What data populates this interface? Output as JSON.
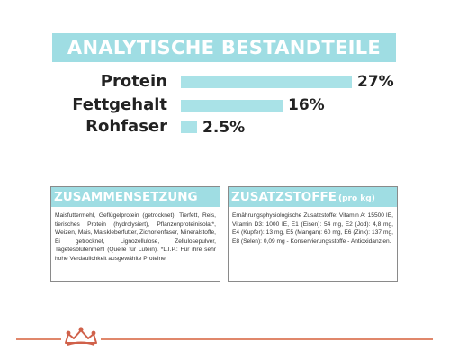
{
  "banner": {
    "title": "ANALYTISCHE BESTANDTEILE"
  },
  "nutrients": [
    {
      "label": "Protein",
      "value": "27%",
      "percent": 27
    },
    {
      "label": "Fettgehalt",
      "value": "16%",
      "percent": 16
    },
    {
      "label": "Rohfaser",
      "value": "2.5%",
      "percent": 2.5
    }
  ],
  "composition": {
    "title": "ZUSAMMENSETZUNG",
    "text": "Maisfuttermehl, Geflügelprotein (getrocknet), Tierfett, Reis, tierisches Protein (hydrolysiert), Pflanzenproteinisolat*, Weizen, Mais, Maiskleberfutter, Zichorienfaser, Mineralstoffe, Ei getrocknet, Lignozellulose, Zellulosepulver, Tagetesblütenmehl (Quelle für Lutein). *L.I.P.: Für ihre sehr hohe Verdaulichkeit ausgewählte Proteine."
  },
  "additives": {
    "title": "ZUSATZSTOFFE",
    "subtitle": "(pro kg)",
    "text": "Ernährungsphysiologische Zusatzstoffe: Vitamin A: 15500 IE, Vitamin D3: 1000 IE, E1 (Eisen): 54 mg, E2 (Jod): 4,8 mg, E4 (Kupfer): 13 mg, E5 (Mangan): 60 mg, E6 (Zink): 137 mg, E8 (Selen): 0,09 mg - Konservierungsstoffe - Antioxidanzien."
  },
  "colors": {
    "accent": "#9fdde3",
    "bar": "#a9e2e7",
    "brand": "#e0876b"
  },
  "logo": {
    "icon": "royal-canin-crown-icon"
  }
}
